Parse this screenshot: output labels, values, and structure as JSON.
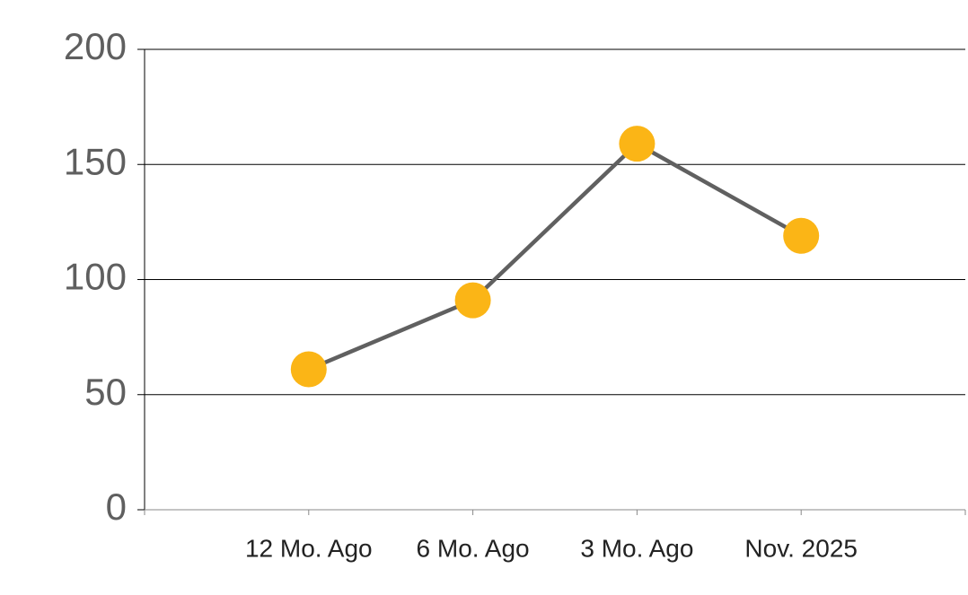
{
  "chart_data": {
    "type": "line",
    "categories": [
      "12 Mo. Ago",
      "6 Mo. Ago",
      "3 Mo. Ago",
      "Nov. 2025"
    ],
    "series": [
      {
        "values": [
          61,
          91,
          159,
          119
        ],
        "color": "#606060",
        "marker_color": "#fbb516"
      }
    ],
    "ylim": [
      0,
      200
    ],
    "yticks": [
      0,
      50,
      100,
      150,
      200
    ],
    "grid": true
  }
}
